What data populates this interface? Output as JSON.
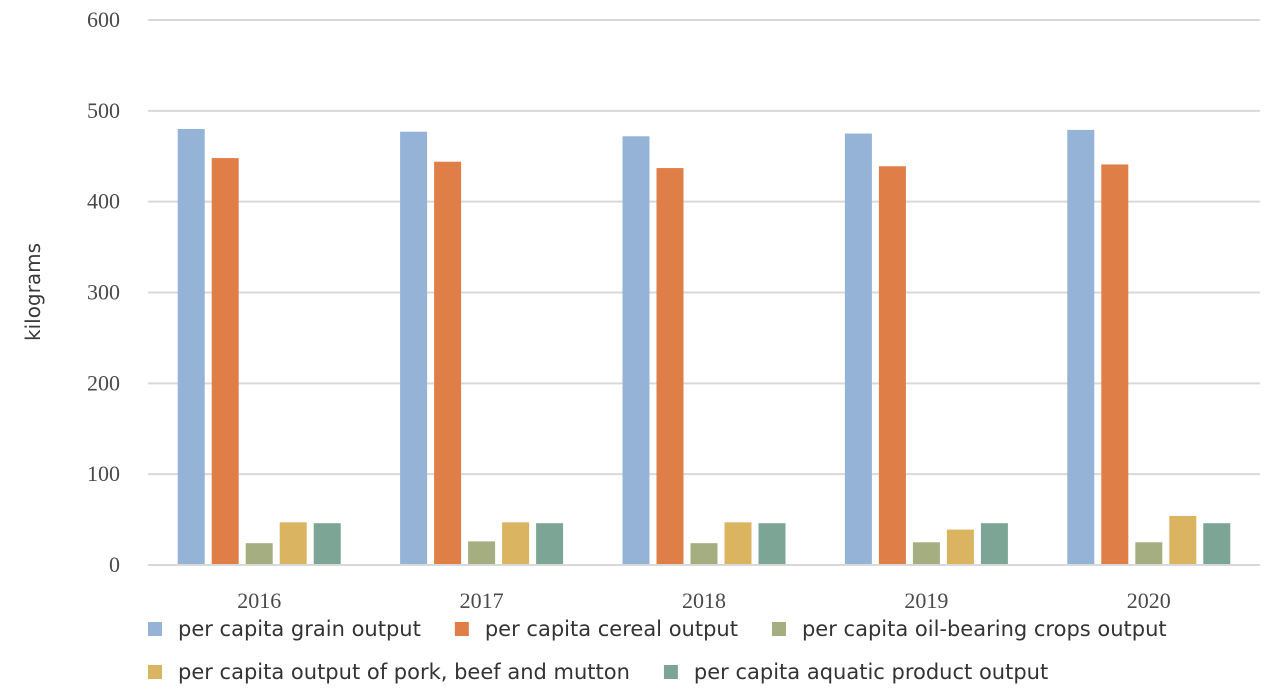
{
  "chart_data": {
    "type": "bar",
    "title": "",
    "xlabel": "",
    "ylabel": "kilograms",
    "ylim": [
      0,
      600
    ],
    "yticks": [
      0,
      100,
      200,
      300,
      400,
      500,
      600
    ],
    "grid": true,
    "legend_position": "bottom",
    "categories": [
      "2016",
      "2017",
      "2018",
      "2019",
      "2020"
    ],
    "series": [
      {
        "name": "per capita grain output",
        "color": "#95b3d7",
        "values": [
          480,
          477,
          472,
          475,
          479
        ]
      },
      {
        "name": "per capita cereal output",
        "color": "#e07e48",
        "values": [
          448,
          444,
          437,
          439,
          441
        ]
      },
      {
        "name": "per capita oil-bearing crops output",
        "color": "#a5ae80",
        "values": [
          24,
          26,
          24,
          25,
          25
        ]
      },
      {
        "name": "per capita output of pork, beef and mutton",
        "color": "#dbb462",
        "values": [
          47,
          47,
          47,
          39,
          54
        ]
      },
      {
        "name": "per capita aquatic product output",
        "color": "#7ca596",
        "values": [
          46,
          46,
          46,
          46,
          46
        ]
      }
    ]
  }
}
